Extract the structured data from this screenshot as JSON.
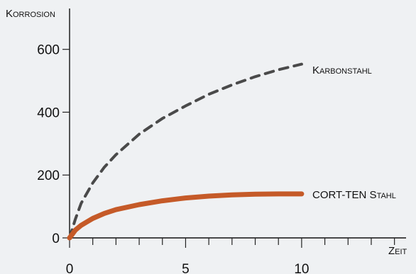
{
  "chart_data": {
    "type": "line",
    "title": "",
    "ylabel": "Korrosion",
    "xlabel": "Zeit",
    "xlim": [
      0,
      14.5
    ],
    "ylim": [
      0,
      730
    ],
    "x_ticks": [
      0,
      5,
      10
    ],
    "x_minor_ticks": [
      1,
      2,
      3,
      4,
      6,
      7,
      8,
      9,
      11,
      12,
      13,
      14
    ],
    "y_ticks": [
      0,
      200,
      400,
      600
    ],
    "grid": false,
    "series": [
      {
        "name": "Karbonstahl",
        "color": "#4a4a4a",
        "style": "dashed",
        "x": [
          0,
          0.25,
          0.5,
          1,
          1.5,
          2,
          3,
          4,
          5,
          6,
          7,
          8,
          9,
          10
        ],
        "y": [
          0,
          60,
          110,
          175,
          225,
          265,
          330,
          380,
          420,
          457,
          487,
          513,
          535,
          553
        ]
      },
      {
        "name": "CORT-TEN Stahl",
        "color": "#c55a28",
        "style": "solid",
        "x": [
          0,
          0.25,
          0.5,
          1,
          1.5,
          2,
          3,
          4,
          5,
          6,
          7,
          8,
          9,
          10
        ],
        "y": [
          0,
          25,
          40,
          62,
          78,
          90,
          106,
          118,
          127,
          133,
          137,
          139,
          140,
          140
        ]
      }
    ]
  }
}
